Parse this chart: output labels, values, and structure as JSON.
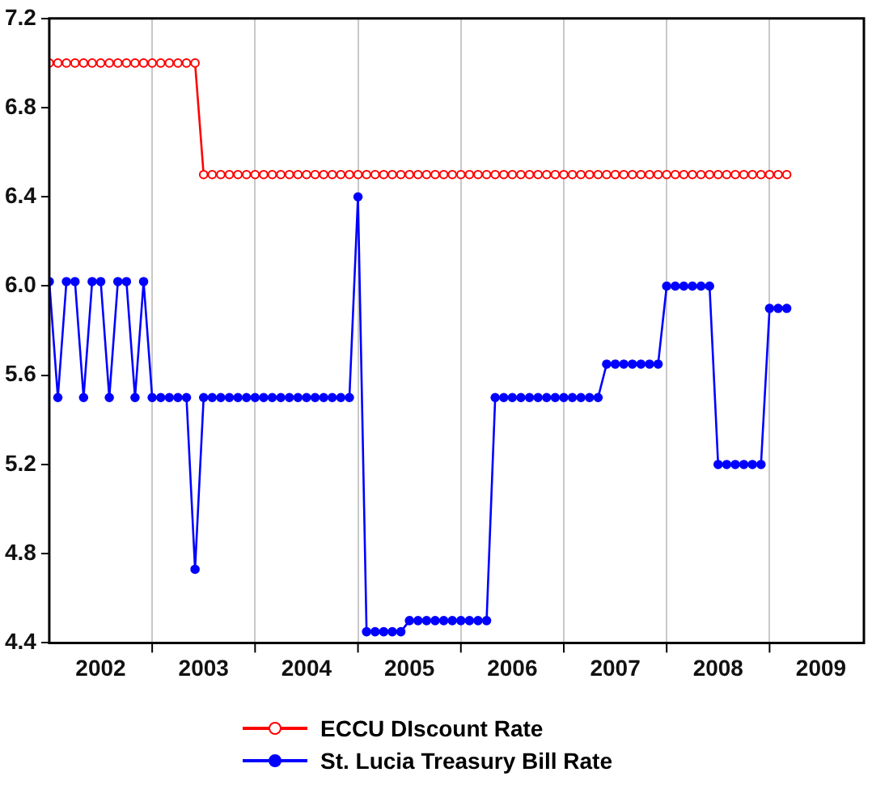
{
  "chart_data": {
    "type": "line",
    "x": [
      "2002-01",
      "2002-02",
      "2002-03",
      "2002-04",
      "2002-05",
      "2002-06",
      "2002-07",
      "2002-08",
      "2002-09",
      "2002-10",
      "2002-11",
      "2002-12",
      "2003-01",
      "2003-02",
      "2003-03",
      "2003-04",
      "2003-05",
      "2003-06",
      "2003-07",
      "2003-08",
      "2003-09",
      "2003-10",
      "2003-11",
      "2003-12",
      "2004-01",
      "2004-02",
      "2004-03",
      "2004-04",
      "2004-05",
      "2004-06",
      "2004-07",
      "2004-08",
      "2004-09",
      "2004-10",
      "2004-11",
      "2004-12",
      "2005-01",
      "2005-02",
      "2005-03",
      "2005-04",
      "2005-05",
      "2005-06",
      "2005-07",
      "2005-08",
      "2005-09",
      "2005-10",
      "2005-11",
      "2005-12",
      "2006-01",
      "2006-02",
      "2006-03",
      "2006-04",
      "2006-05",
      "2006-06",
      "2006-07",
      "2006-08",
      "2006-09",
      "2006-10",
      "2006-11",
      "2006-12",
      "2007-01",
      "2007-02",
      "2007-03",
      "2007-04",
      "2007-05",
      "2007-06",
      "2007-07",
      "2007-08",
      "2007-09",
      "2007-10",
      "2007-11",
      "2007-12",
      "2008-01",
      "2008-02",
      "2008-03",
      "2008-04",
      "2008-05",
      "2008-06",
      "2008-07",
      "2008-08",
      "2008-09",
      "2008-10",
      "2008-11",
      "2008-12",
      "2009-01",
      "2009-02",
      "2009-03"
    ],
    "series": [
      {
        "name": "ECCU DIscount Rate",
        "color": "#ff0000",
        "values": [
          7,
          7,
          7,
          7,
          7,
          7,
          7,
          7,
          7,
          7,
          7,
          7,
          7,
          7,
          7,
          7,
          7,
          7,
          6.5,
          6.5,
          6.5,
          6.5,
          6.5,
          6.5,
          6.5,
          6.5,
          6.5,
          6.5,
          6.5,
          6.5,
          6.5,
          6.5,
          6.5,
          6.5,
          6.5,
          6.5,
          6.5,
          6.5,
          6.5,
          6.5,
          6.5,
          6.5,
          6.5,
          6.5,
          6.5,
          6.5,
          6.5,
          6.5,
          6.5,
          6.5,
          6.5,
          6.5,
          6.5,
          6.5,
          6.5,
          6.5,
          6.5,
          6.5,
          6.5,
          6.5,
          6.5,
          6.5,
          6.5,
          6.5,
          6.5,
          6.5,
          6.5,
          6.5,
          6.5,
          6.5,
          6.5,
          6.5,
          6.5,
          6.5,
          6.5,
          6.5,
          6.5,
          6.5,
          6.5,
          6.5,
          6.5,
          6.5,
          6.5,
          6.5,
          6.5,
          6.5,
          6.5
        ]
      },
      {
        "name": "St. Lucia Treasury Bill Rate",
        "color": "#0000ff",
        "values": [
          6.02,
          5.5,
          6.02,
          6.02,
          5.5,
          6.02,
          6.02,
          5.5,
          6.02,
          6.02,
          5.5,
          6.02,
          5.5,
          5.5,
          5.5,
          5.5,
          5.5,
          4.73,
          5.5,
          5.5,
          5.5,
          5.5,
          5.5,
          5.5,
          5.5,
          5.5,
          5.5,
          5.5,
          5.5,
          5.5,
          5.5,
          5.5,
          5.5,
          5.5,
          5.5,
          5.5,
          6.4,
          4.45,
          4.45,
          4.45,
          4.45,
          4.45,
          4.5,
          4.5,
          4.5,
          4.5,
          4.5,
          4.5,
          4.5,
          4.5,
          4.5,
          4.5,
          5.5,
          5.5,
          5.5,
          5.5,
          5.5,
          5.5,
          5.5,
          5.5,
          5.5,
          5.5,
          5.5,
          5.5,
          5.5,
          5.65,
          5.65,
          5.65,
          5.65,
          5.65,
          5.65,
          5.65,
          6.0,
          6.0,
          6.0,
          6.0,
          6.0,
          6.0,
          5.2,
          5.2,
          5.2,
          5.2,
          5.2,
          5.2,
          5.9,
          5.9,
          5.9
        ]
      }
    ],
    "xlim": [
      "2002-01",
      "2009-12"
    ],
    "xticks": [
      {
        "value": "2003-01",
        "label": null
      },
      {
        "value": "2004-01",
        "label": null
      },
      {
        "value": "2005-01",
        "label": null
      },
      {
        "value": "2006-01",
        "label": null
      },
      {
        "value": "2007-01",
        "label": null
      },
      {
        "value": "2008-01",
        "label": null
      },
      {
        "value": "2009-01",
        "label": null
      },
      {
        "value": "2002-07",
        "label": "2002"
      },
      {
        "value": "2003-07",
        "label": "2003"
      },
      {
        "value": "2004-07",
        "label": "2004"
      },
      {
        "value": "2005-07",
        "label": "2005"
      },
      {
        "value": "2006-07",
        "label": "2006"
      },
      {
        "value": "2007-07",
        "label": "2007"
      },
      {
        "value": "2008-07",
        "label": "2008"
      },
      {
        "value": "2009-07",
        "label": "2009"
      }
    ],
    "ylim": [
      4.4,
      7.2
    ],
    "yticks": [
      4.4,
      4.8,
      5.2,
      5.6,
      {
        "value": 6,
        "label": "6.0"
      },
      6.4,
      6.8,
      7.2
    ],
    "grid": "x",
    "legend": "bottom",
    "marker": "circle",
    "line_style": "solid"
  }
}
